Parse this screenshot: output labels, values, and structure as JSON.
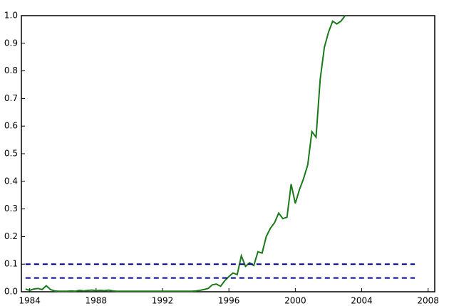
{
  "chart_data": {
    "type": "line",
    "xlim": [
      1983.5,
      2008.4
    ],
    "ylim": [
      0,
      1
    ],
    "xticks": [
      1984,
      1988,
      1992,
      1996,
      2000,
      2004,
      2008
    ],
    "yticks": [
      {
        "value": 0,
        "label": "0.0"
      },
      0.1,
      0.2,
      0.3,
      0.4,
      0.5,
      0.6,
      0.7,
      0.8,
      0.9,
      {
        "value": 1,
        "label": "1.0"
      }
    ],
    "series": [
      {
        "color": "#1a7a1a",
        "x": [
          1983.75,
          1984,
          1984.25,
          1984.5,
          1984.75,
          1985,
          1985.25,
          1985.5,
          1985.75,
          1986,
          1986.25,
          1986.5,
          1986.75,
          1987,
          1987.25,
          1987.5,
          1987.75,
          1988,
          1988.25,
          1988.5,
          1988.75,
          1989,
          1989.25,
          1989.5,
          1989.75,
          1990,
          1990.25,
          1990.5,
          1990.75,
          1991,
          1991.25,
          1991.5,
          1991.75,
          1992,
          1992.25,
          1992.5,
          1992.75,
          1993,
          1993.25,
          1993.5,
          1993.75,
          1994,
          1994.25,
          1994.5,
          1994.75,
          1995,
          1995.25,
          1995.5,
          1995.75,
          1996,
          1996.25,
          1996.5,
          1996.75,
          1997,
          1997.25,
          1997.5,
          1997.75,
          1998,
          1998.25,
          1998.5,
          1998.75,
          1999,
          1999.25,
          1999.5,
          1999.75,
          2000,
          2000.25,
          2000.5,
          2000.75,
          2001,
          2001.25,
          2001.5,
          2001.75,
          2002,
          2002.25,
          2002.5,
          2002.75,
          2003
        ],
        "values": [
          0.01,
          0.005,
          0.01,
          0.012,
          0.008,
          0.022,
          0.008,
          0.003,
          0.002,
          0.002,
          0.002,
          0.003,
          0.002,
          0.005,
          0.003,
          0.005,
          0.006,
          0.004,
          0.005,
          0.004,
          0.006,
          0.003,
          0.002,
          0.002,
          0.002,
          0.002,
          0.002,
          0.002,
          0.002,
          0.002,
          0.002,
          0.002,
          0.002,
          0.002,
          0.002,
          0.002,
          0.002,
          0.002,
          0.002,
          0.002,
          0.002,
          0.003,
          0.005,
          0.008,
          0.012,
          0.025,
          0.028,
          0.02,
          0.04,
          0.055,
          0.068,
          0.062,
          0.13,
          0.092,
          0.105,
          0.095,
          0.145,
          0.14,
          0.2,
          0.23,
          0.25,
          0.285,
          0.265,
          0.27,
          0.39,
          0.32,
          0.37,
          0.41,
          0.46,
          0.58,
          0.56,
          0.77,
          0.885,
          0.94,
          0.98,
          0.97,
          0.98,
          1.0
        ],
        "dashed": false
      },
      {
        "color": "#000080",
        "x": [
          1983.75,
          2007.2
        ],
        "values": [
          0.1,
          0.1
        ],
        "dashed": true
      },
      {
        "color": "#000080",
        "x": [
          1983.75,
          2007.2
        ],
        "values": [
          0.05,
          0.05
        ],
        "dashed": true
      }
    ]
  }
}
